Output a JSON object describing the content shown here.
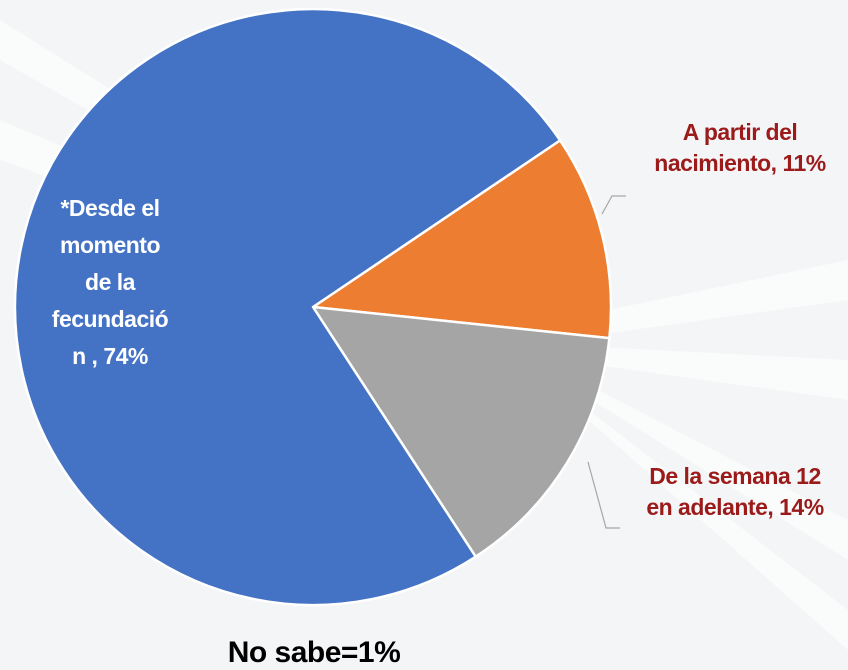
{
  "chart_data": {
    "type": "pie",
    "slices": [
      {
        "label_lines": [
          "A partir del",
          "nacimiento, 11%"
        ],
        "value": 11,
        "color": "#ed7d31",
        "label_position": "outside"
      },
      {
        "label_lines": [
          "De la semana 12",
          "en adelante, 14%"
        ],
        "value": 14,
        "color": "#a5a5a5",
        "label_position": "outside"
      },
      {
        "label_lines": [
          "*Desde el",
          "momento",
          "de la",
          "fecundació",
          "n , 74%"
        ],
        "value": 74,
        "color": "#4472c4",
        "label_position": "inside"
      }
    ],
    "footnote": "No sabe=1%"
  },
  "colors": {
    "background": "#f4f5f7",
    "outside_label": "#9b1b1b",
    "inside_label": "#ffffff",
    "leader_line": "#a6a6a6"
  }
}
